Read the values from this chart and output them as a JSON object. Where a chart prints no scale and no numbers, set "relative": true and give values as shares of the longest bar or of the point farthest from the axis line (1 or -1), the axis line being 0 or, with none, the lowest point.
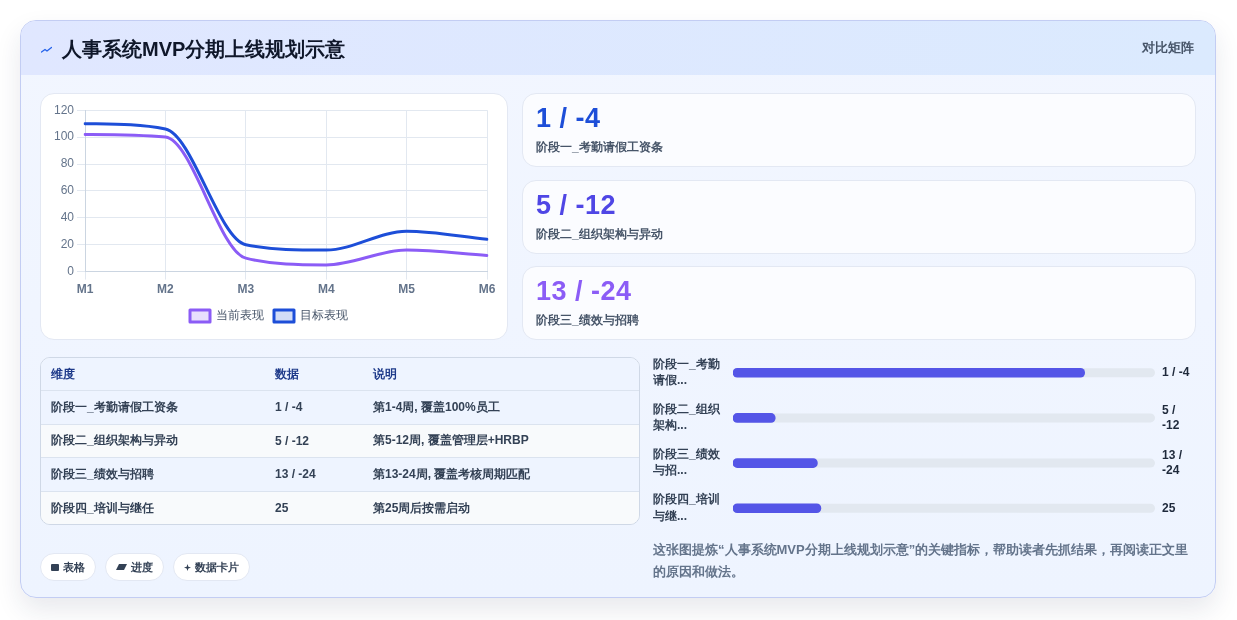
{
  "chart_data": [
    {
      "type": "other",
      "title": "人事系统MVP分期上线规划示意",
      "annotations": [
        "对比矩阵"
      ]
    },
    {
      "type": "line",
      "categories": [
        "M1",
        "M2",
        "M3",
        "M4",
        "M5",
        "M6"
      ],
      "series": [
        {
          "name": "当前表现",
          "color": "#8b5cf6",
          "values": [
            102,
            100,
            10,
            5,
            16,
            12
          ]
        },
        {
          "name": "目标表现",
          "color": "#1d4ed8",
          "values": [
            110,
            106,
            20,
            16,
            30,
            24
          ]
        }
      ],
      "ylim": [
        0,
        120
      ],
      "yticks": [
        0,
        20,
        40,
        60,
        80,
        100,
        120
      ],
      "grid": true,
      "legend": "bottom",
      "marker": "none"
    },
    {
      "type": "other",
      "annotations": [
        "1 / -4",
        "阶段一_考勤请假工资条",
        "5 / -12",
        "阶段二_组织架构与异动",
        "13 / -24",
        "阶段三_绩效与招聘"
      ]
    },
    {
      "type": "other",
      "annotations": [
        "维度",
        "数据",
        "说明",
        "阶段一_考勤请假工资条",
        "1 / -4",
        "第1-4周, 覆盖100%员工",
        "阶段二_组织架构与异动",
        "5 / -12",
        "第5-12周, 覆盖管理层+HRBP",
        "阶段三_绩效与招聘",
        "13 / -24",
        "第13-24周, 覆盖考核周期匹配",
        "阶段四_培训与继任",
        "25",
        "第25周后按需启动"
      ]
    },
    {
      "type": "bar",
      "orientation": "horizontal",
      "relative": true,
      "categories": [
        "阶段一_考勤请假...",
        "阶段二_组织架构...",
        "阶段三_绩效与招...",
        "阶段四_培训与继..."
      ],
      "values": [
        1,
        0.12,
        0.24,
        0.25
      ],
      "color": "#5455e7",
      "annotations": [
        "1 / -4",
        "5 / -12",
        "13 / -24",
        "25"
      ]
    },
    {
      "type": "other",
      "annotations": [
        "表格",
        "进度",
        "数据卡片"
      ]
    },
    {
      "type": "other",
      "annotations": [
        "这张图提炼“人事系统MVP分期上线规划示意”的关键指标，帮助读者先抓结果，再阅读正文里的原因和做法。"
      ]
    }
  ]
}
